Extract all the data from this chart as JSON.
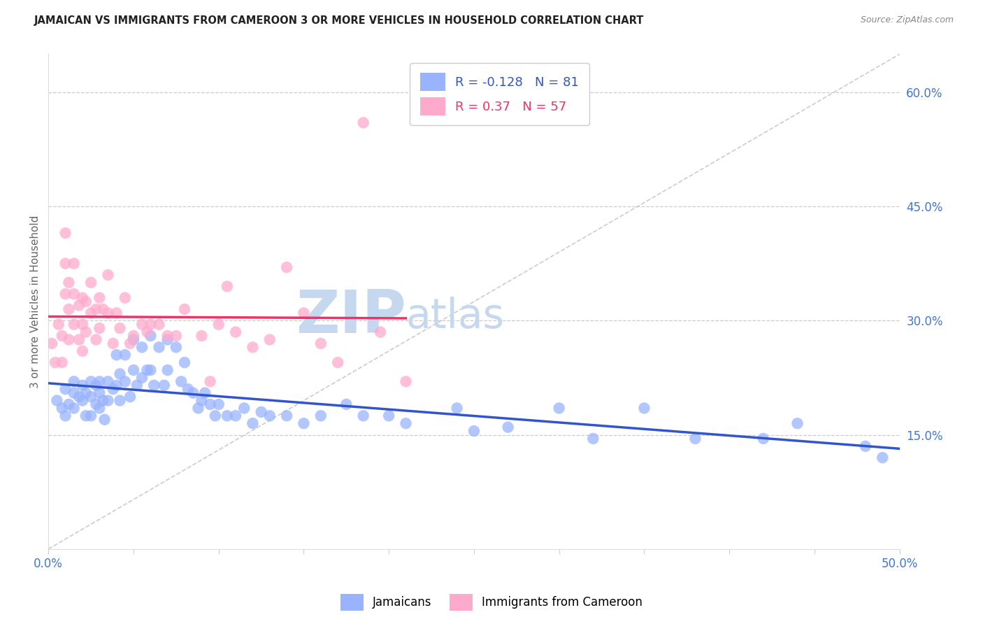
{
  "title": "JAMAICAN VS IMMIGRANTS FROM CAMEROON 3 OR MORE VEHICLES IN HOUSEHOLD CORRELATION CHART",
  "source": "Source: ZipAtlas.com",
  "ylabel": "3 or more Vehicles in Household",
  "xmin": 0.0,
  "xmax": 0.5,
  "ymin": 0.0,
  "ymax": 0.65,
  "yticks_right": [
    0.15,
    0.3,
    0.45,
    0.6
  ],
  "yticklabels_right": [
    "15.0%",
    "30.0%",
    "45.0%",
    "60.0%"
  ],
  "xtick_positions": [
    0.0,
    0.05,
    0.1,
    0.15,
    0.2,
    0.25,
    0.3,
    0.35,
    0.4,
    0.45,
    0.5
  ],
  "grid_color": "#cccccc",
  "bg_color": "#ffffff",
  "jamaicans_color": "#99b3ff",
  "cameroon_color": "#ffaacc",
  "blue_line_color": "#3355cc",
  "pink_line_color": "#ee3366",
  "jamaicans_R": -0.128,
  "jamaicans_N": 81,
  "cameroon_R": 0.37,
  "cameroon_N": 57,
  "legend_label_1": "Jamaicans",
  "legend_label_2": "Immigrants from Cameroon",
  "watermark_zip": "ZIP",
  "watermark_atlas": "atlas",
  "watermark_color": "#c5d8f0",
  "axis_label_color": "#4477cc",
  "title_color": "#222222",
  "source_color": "#888888",
  "jamaicans_x": [
    0.005,
    0.008,
    0.01,
    0.01,
    0.012,
    0.015,
    0.015,
    0.015,
    0.018,
    0.02,
    0.02,
    0.022,
    0.022,
    0.025,
    0.025,
    0.025,
    0.028,
    0.028,
    0.03,
    0.03,
    0.03,
    0.032,
    0.033,
    0.035,
    0.035,
    0.038,
    0.04,
    0.04,
    0.042,
    0.042,
    0.045,
    0.045,
    0.048,
    0.05,
    0.05,
    0.052,
    0.055,
    0.055,
    0.058,
    0.06,
    0.06,
    0.062,
    0.065,
    0.068,
    0.07,
    0.07,
    0.075,
    0.078,
    0.08,
    0.082,
    0.085,
    0.088,
    0.09,
    0.092,
    0.095,
    0.098,
    0.1,
    0.105,
    0.11,
    0.115,
    0.12,
    0.125,
    0.13,
    0.14,
    0.15,
    0.16,
    0.175,
    0.185,
    0.2,
    0.21,
    0.24,
    0.25,
    0.27,
    0.3,
    0.32,
    0.35,
    0.38,
    0.42,
    0.44,
    0.48,
    0.49
  ],
  "jamaicans_y": [
    0.195,
    0.185,
    0.21,
    0.175,
    0.19,
    0.22,
    0.205,
    0.185,
    0.2,
    0.215,
    0.195,
    0.205,
    0.175,
    0.22,
    0.2,
    0.175,
    0.215,
    0.19,
    0.22,
    0.205,
    0.185,
    0.195,
    0.17,
    0.22,
    0.195,
    0.21,
    0.255,
    0.215,
    0.23,
    0.195,
    0.255,
    0.22,
    0.2,
    0.275,
    0.235,
    0.215,
    0.265,
    0.225,
    0.235,
    0.28,
    0.235,
    0.215,
    0.265,
    0.215,
    0.275,
    0.235,
    0.265,
    0.22,
    0.245,
    0.21,
    0.205,
    0.185,
    0.195,
    0.205,
    0.19,
    0.175,
    0.19,
    0.175,
    0.175,
    0.185,
    0.165,
    0.18,
    0.175,
    0.175,
    0.165,
    0.175,
    0.19,
    0.175,
    0.175,
    0.165,
    0.185,
    0.155,
    0.16,
    0.185,
    0.145,
    0.185,
    0.145,
    0.145,
    0.165,
    0.135,
    0.12
  ],
  "cameroon_x": [
    0.002,
    0.004,
    0.006,
    0.008,
    0.008,
    0.01,
    0.01,
    0.01,
    0.012,
    0.012,
    0.012,
    0.015,
    0.015,
    0.015,
    0.018,
    0.018,
    0.02,
    0.02,
    0.02,
    0.022,
    0.022,
    0.025,
    0.025,
    0.028,
    0.028,
    0.03,
    0.03,
    0.032,
    0.035,
    0.035,
    0.038,
    0.04,
    0.042,
    0.045,
    0.048,
    0.05,
    0.055,
    0.058,
    0.06,
    0.065,
    0.07,
    0.075,
    0.08,
    0.09,
    0.095,
    0.1,
    0.105,
    0.11,
    0.12,
    0.13,
    0.14,
    0.15,
    0.16,
    0.17,
    0.185,
    0.195,
    0.21
  ],
  "cameroon_y": [
    0.27,
    0.245,
    0.295,
    0.28,
    0.245,
    0.415,
    0.375,
    0.335,
    0.35,
    0.315,
    0.275,
    0.375,
    0.335,
    0.295,
    0.32,
    0.275,
    0.33,
    0.295,
    0.26,
    0.325,
    0.285,
    0.35,
    0.31,
    0.315,
    0.275,
    0.33,
    0.29,
    0.315,
    0.36,
    0.31,
    0.27,
    0.31,
    0.29,
    0.33,
    0.27,
    0.28,
    0.295,
    0.285,
    0.295,
    0.295,
    0.28,
    0.28,
    0.315,
    0.28,
    0.22,
    0.295,
    0.345,
    0.285,
    0.265,
    0.275,
    0.37,
    0.31,
    0.27,
    0.245,
    0.56,
    0.285,
    0.22
  ]
}
